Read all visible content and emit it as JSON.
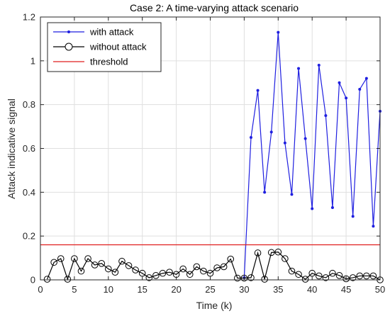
{
  "chart_data": {
    "type": "line",
    "title": "Case 2: A time-varying attack scenario",
    "xlabel": "Time (k)",
    "ylabel": "Attack indicative signal",
    "xlim": [
      0,
      50
    ],
    "ylim": [
      0,
      1.2
    ],
    "xticks": [
      "0",
      "5",
      "10",
      "15",
      "20",
      "25",
      "30",
      "35",
      "40",
      "45",
      "50"
    ],
    "yticks": [
      "0",
      "0.2",
      "0.4",
      "0.6",
      "0.8",
      "1",
      "1.2"
    ],
    "grid": true,
    "legend_position": "top-left",
    "series": [
      {
        "name": "with attack",
        "color": "#1f1fe0",
        "marker": "dot",
        "x": [
          30,
          31,
          32,
          33,
          34,
          35,
          36,
          37,
          38,
          39,
          40,
          41,
          42,
          43,
          44,
          45,
          46,
          47,
          48,
          49,
          50
        ],
        "values": [
          0.01,
          0.65,
          0.865,
          0.4,
          0.675,
          1.13,
          0.625,
          0.39,
          0.965,
          0.645,
          0.325,
          0.98,
          0.75,
          0.33,
          0.9,
          0.83,
          0.29,
          0.87,
          0.92,
          0.245,
          0.77
        ]
      },
      {
        "name": "without attack",
        "color": "#000000",
        "marker": "circle",
        "x": [
          1,
          2,
          3,
          4,
          5,
          6,
          7,
          8,
          9,
          10,
          11,
          12,
          13,
          14,
          15,
          16,
          17,
          18,
          19,
          20,
          21,
          22,
          23,
          24,
          25,
          26,
          27,
          28,
          29,
          30,
          31,
          32,
          33,
          34,
          35,
          36,
          37,
          38,
          39,
          40,
          41,
          42,
          43,
          44,
          45,
          46,
          47,
          48,
          49,
          50
        ],
        "values": [
          0.003,
          0.08,
          0.097,
          0.003,
          0.097,
          0.04,
          0.097,
          0.068,
          0.075,
          0.05,
          0.035,
          0.085,
          0.065,
          0.045,
          0.03,
          0.01,
          0.02,
          0.03,
          0.035,
          0.025,
          0.05,
          0.025,
          0.06,
          0.04,
          0.03,
          0.055,
          0.06,
          0.095,
          0.008,
          0.008,
          0.01,
          0.123,
          0.003,
          0.125,
          0.127,
          0.097,
          0.04,
          0.025,
          0.003,
          0.03,
          0.018,
          0.01,
          0.03,
          0.02,
          0.005,
          0.01,
          0.018,
          0.018,
          0.018,
          0.0
        ]
      },
      {
        "name": "threshold",
        "color": "#e01f1f",
        "marker": "none",
        "x": [
          0,
          50
        ],
        "values": [
          0.16,
          0.16
        ]
      }
    ]
  }
}
